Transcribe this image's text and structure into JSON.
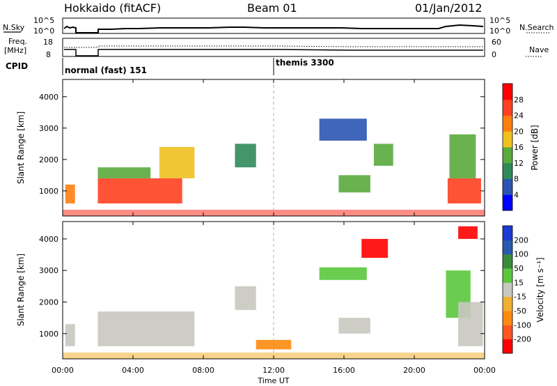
{
  "header": {
    "radar": "Hokkaido (fitACF)",
    "beam": "Beam 01",
    "date": "01/Jan/2012"
  },
  "params": {
    "nsky_label": "N.Sky",
    "nsearch_label": "N.Search",
    "noise_ticks": [
      "10^5",
      "10^0"
    ],
    "freq_label_1": "Freq.",
    "freq_label_2": "[MHz]",
    "freq_ticks": [
      "18",
      "8"
    ],
    "nave_ticks": [
      "60",
      "0"
    ],
    "nave_label": "Nave",
    "cpid_label": "CPID",
    "cpid_1": "normal (fast) 151",
    "cpid_2": "themis 3300"
  },
  "chart_data": [
    {
      "type": "heatmap",
      "title": "",
      "xlabel": "",
      "ylabel": "Slant Range [km]",
      "yticks": [
        "1000",
        "2000",
        "3000",
        "4000"
      ],
      "colorbar": {
        "label": "Power [dB]",
        "ticks": [
          "28",
          "24",
          "20",
          "16",
          "12",
          "8",
          "4"
        ],
        "colors": [
          "#0000ff",
          "#2a55b0",
          "#2f8a5a",
          "#5aaa3c",
          "#f0c020",
          "#ff7f10",
          "#ff4020",
          "#ff0000"
        ]
      },
      "regions": [
        {
          "t0": 0.15,
          "t1": 0.7,
          "r0": 600,
          "r1": 1200,
          "value": 20
        },
        {
          "t0": 2.0,
          "t1": 6.8,
          "r0": 600,
          "r1": 1400,
          "value": 24
        },
        {
          "t0": 2.0,
          "t1": 5.0,
          "r0": 1400,
          "r1": 1750,
          "value": 12
        },
        {
          "t0": 5.5,
          "t1": 7.5,
          "r0": 1400,
          "r1": 2400,
          "value": 18
        },
        {
          "t0": 9.8,
          "t1": 11.0,
          "r0": 1750,
          "r1": 2500,
          "value": 10
        },
        {
          "t0": 14.6,
          "t1": 17.3,
          "r0": 2600,
          "r1": 3300,
          "value": 6
        },
        {
          "t0": 15.7,
          "t1": 17.5,
          "r0": 950,
          "r1": 1500,
          "value": 12
        },
        {
          "t0": 17.7,
          "t1": 18.8,
          "r0": 1800,
          "r1": 2500,
          "value": 14
        },
        {
          "t0": 21.9,
          "t1": 23.8,
          "r0": 600,
          "r1": 1400,
          "value": 24
        },
        {
          "t0": 22.0,
          "t1": 23.5,
          "r0": 1400,
          "r1": 2800,
          "value": 12
        }
      ]
    },
    {
      "type": "heatmap",
      "title": "",
      "xlabel": "Time UT",
      "ylabel": "Slant Range [km]",
      "xticks": [
        "00:00",
        "04:00",
        "08:00",
        "12:00",
        "16:00",
        "20:00",
        "00:00"
      ],
      "yticks": [
        "1000",
        "2000",
        "3000",
        "4000"
      ],
      "colorbar": {
        "label": "Velocity [m s⁻¹]",
        "ticks": [
          "200",
          "100",
          "50",
          "15",
          "-15",
          "-50",
          "-100",
          "-200"
        ],
        "colors": [
          "#ff0000",
          "#ff5520",
          "#ff8a10",
          "#f0b030",
          "#c8c8c0",
          "#5ac83c",
          "#3a8a3c",
          "#2a5ab0",
          "#1a3ad0"
        ]
      },
      "regions": [
        {
          "t0": 0.15,
          "t1": 0.7,
          "r0": 600,
          "r1": 1300,
          "value": 0
        },
        {
          "t0": 2.0,
          "t1": 7.5,
          "r0": 600,
          "r1": 1700,
          "value": 0
        },
        {
          "t0": 9.8,
          "t1": 11.0,
          "r0": 1750,
          "r1": 2500,
          "value": 0
        },
        {
          "t0": 11.0,
          "t1": 13.0,
          "r0": 500,
          "r1": 800,
          "value": -60
        },
        {
          "t0": 14.6,
          "t1": 17.3,
          "r0": 2700,
          "r1": 3100,
          "value": 30
        },
        {
          "t0": 15.7,
          "t1": 17.5,
          "r0": 1000,
          "r1": 1500,
          "value": 0
        },
        {
          "t0": 17.0,
          "t1": 18.5,
          "r0": 3400,
          "r1": 4000,
          "value": -200
        },
        {
          "t0": 21.8,
          "t1": 23.2,
          "r0": 1500,
          "r1": 3000,
          "value": 30
        },
        {
          "t0": 22.5,
          "t1": 23.9,
          "r0": 600,
          "r1": 2000,
          "value": 0
        },
        {
          "t0": 22.5,
          "t1": 23.6,
          "r0": 4000,
          "r1": 4400,
          "value": -200
        }
      ]
    }
  ]
}
